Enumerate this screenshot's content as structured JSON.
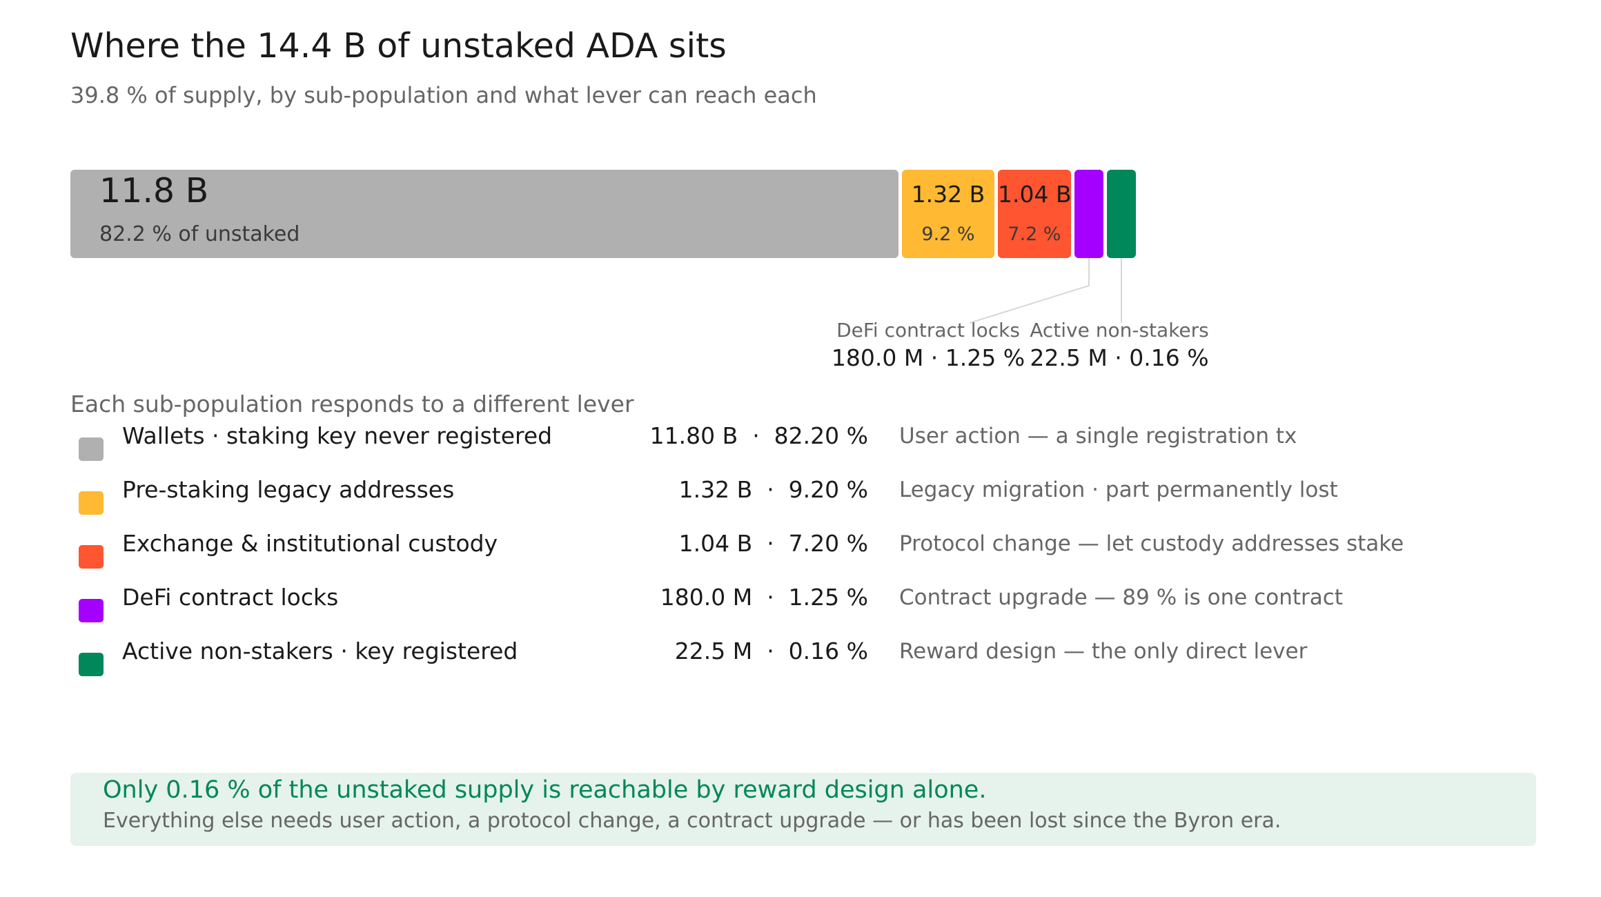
{
  "title": "Where the 14.4 B of unstaked ADA sits",
  "subtitle": "39.8 % of supply, by sub-population and what lever can reach each",
  "chart_data": {
    "type": "bar",
    "orientation": "horizontal-stacked",
    "unit": "ADA",
    "total": "14.4 B",
    "segments": [
      {
        "name": "Wallets · staking key never registered",
        "value_B": 11.8,
        "value_label": "11.8 B",
        "pct_label": "82.2 % of unstaked",
        "legend_nums": "11.80 B  ·  82.20 %",
        "lever": "User action — a single registration tx",
        "color": "#b0b0b0"
      },
      {
        "name": "Pre-staking legacy addresses",
        "value_B": 1.32,
        "value_label": "1.32 B",
        "pct_label": "9.2 %",
        "legend_nums": "1.32 B  ·  9.20 %",
        "lever": "Legacy migration · part permanently lost",
        "color": "#ffb932"
      },
      {
        "name": "Exchange & institutional custody",
        "value_B": 1.04,
        "value_label": "1.04 B",
        "pct_label": "7.2 %",
        "legend_nums": "1.04 B  ·  7.20 %",
        "lever": "Protocol change — let custody addresses stake",
        "color": "#ff5530"
      },
      {
        "name": "DeFi contract locks",
        "value_B": 0.18,
        "callout_name": "DeFi contract locks",
        "callout_value": "180.0 M · 1.25 %",
        "legend_nums": "180.0 M  ·  1.25 %",
        "lever": "Contract upgrade — 89 % is one contract",
        "color": "#a500ff"
      },
      {
        "name": "Active non-stakers · key registered",
        "value_B": 0.0225,
        "callout_name": "Active non-stakers",
        "callout_value": "22.5 M · 0.16 %",
        "legend_nums": "22.5 M  ·  0.16 %",
        "lever": "Reward design — the only direct lever",
        "color": "#00875a"
      }
    ]
  },
  "legend": {
    "heading": "Each sub-population responds to a different lever"
  },
  "callout_box": {
    "headline": "Only 0.16 % of the unstaked supply is reachable by reward design alone.",
    "body": "Everything else needs user action, a protocol change, a contract upgrade — or has been lost since the Byron era."
  }
}
